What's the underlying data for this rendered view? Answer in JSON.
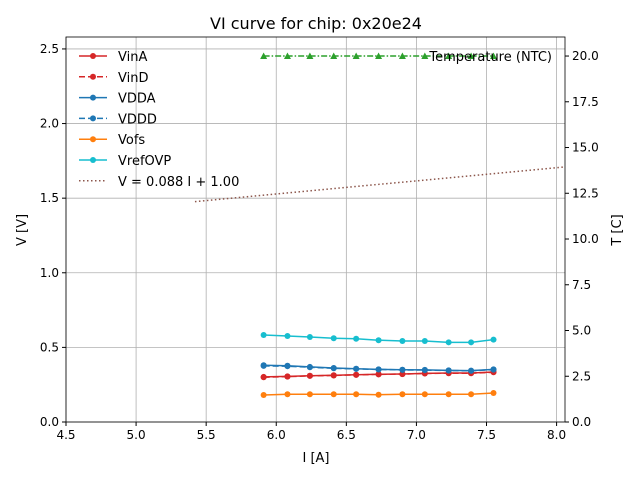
{
  "chart_data": {
    "type": "line",
    "title": "VI curve for chip: 0x20e24",
    "xlabel": "I [A]",
    "ylabel": "V [V]",
    "y2label": "T [C]",
    "xlim": [
      4.5,
      8.06
    ],
    "ylim": [
      0,
      2.58
    ],
    "y2lim": [
      0,
      21.04
    ],
    "xticks": [
      "4.5",
      "5.0",
      "5.5",
      "6.0",
      "6.5",
      "7.0",
      "7.5",
      "8.0"
    ],
    "yticks": [
      "0.0",
      "0.5",
      "1.0",
      "1.5",
      "2.0",
      "2.5"
    ],
    "y2ticks": [
      "0.0",
      "2.5",
      "5.0",
      "7.5",
      "10.0",
      "12.5",
      "15.0",
      "17.5",
      "20.0"
    ],
    "grid": true,
    "legend_placement": "upper-left",
    "x": [
      5.91,
      6.08,
      6.24,
      6.41,
      6.57,
      6.73,
      6.9,
      7.06,
      7.23,
      7.39,
      7.55
    ],
    "series": [
      {
        "name": "VinA",
        "color": "#d62728",
        "dash": "",
        "values": [
          0.302,
          0.306,
          0.31,
          0.313,
          0.317,
          0.32,
          0.322,
          0.326,
          0.328,
          0.328,
          0.335
        ]
      },
      {
        "name": "VinD",
        "color": "#d62728",
        "dash": "6,3",
        "values": [
          0.3,
          0.304,
          0.309,
          0.312,
          0.316,
          0.319,
          0.321,
          0.325,
          0.327,
          0.327,
          0.333
        ]
      },
      {
        "name": "VDDA",
        "color": "#1f77b4",
        "dash": "",
        "values": [
          0.38,
          0.377,
          0.369,
          0.362,
          0.357,
          0.353,
          0.35,
          0.349,
          0.346,
          0.344,
          0.353
        ]
      },
      {
        "name": "VDDD",
        "color": "#1f77b4",
        "dash": "6,3",
        "values": [
          0.376,
          0.374,
          0.367,
          0.36,
          0.356,
          0.352,
          0.349,
          0.348,
          0.345,
          0.343,
          0.351
        ]
      },
      {
        "name": "Vofs",
        "color": "#ff7f0e",
        "dash": "",
        "values": [
          0.181,
          0.186,
          0.186,
          0.186,
          0.186,
          0.183,
          0.186,
          0.186,
          0.186,
          0.186,
          0.194
        ]
      },
      {
        "name": "VrefOVP",
        "color": "#17becf",
        "dash": "",
        "values": [
          0.583,
          0.576,
          0.57,
          0.561,
          0.558,
          0.548,
          0.543,
          0.543,
          0.534,
          0.534,
          0.552
        ]
      }
    ],
    "fit": {
      "name": "V = 0.088 I + 1.00",
      "slope": 0.088,
      "intercept": 1.0,
      "x_range": [
        5.42,
        8.06
      ],
      "color": "#8c564b"
    },
    "temperature": {
      "name": "Temperature (NTC)",
      "color": "#2ca02c",
      "values": [
        20,
        20,
        20,
        20,
        20,
        20,
        20,
        20,
        20,
        20,
        20
      ]
    }
  }
}
